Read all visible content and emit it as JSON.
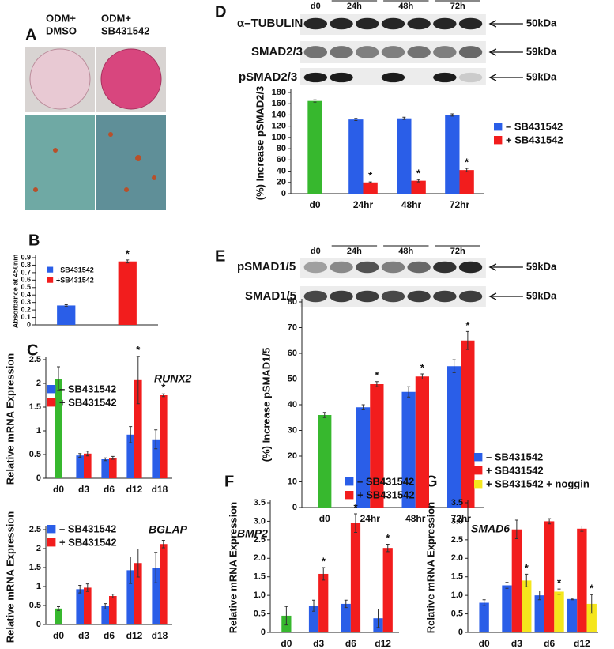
{
  "panel_labels": [
    "A",
    "B",
    "C",
    "D",
    "E",
    "F",
    "G"
  ],
  "panel_a": {
    "labels": [
      [
        "ODM+",
        "DMSO"
      ],
      [
        "ODM+",
        "SB431542"
      ]
    ]
  },
  "blots": [
    {
      "lanes": [
        "d0",
        "24h",
        "48h",
        "72h"
      ],
      "rows": [
        {
          "label": "α–TUBULIN",
          "size": "50kDa"
        },
        {
          "label": "SMAD2/3",
          "size": "59kDa"
        },
        {
          "label": "pSMAD2/3",
          "size": "59kDa"
        }
      ]
    },
    {
      "lanes": [
        "d0",
        "24h",
        "48h",
        "72h"
      ],
      "rows": [
        {
          "label": "pSMAD1/5",
          "size": "59kDa"
        },
        {
          "label": "SMAD1/5",
          "size": "59kDa"
        }
      ]
    }
  ],
  "chart_data": [
    {
      "type": "bar",
      "ylabel": "Absorbance at 450nm",
      "categories": [
        null,
        null
      ],
      "marker": "*",
      "series": [
        {
          "name": "−SB431542",
          "color": "#2a5ee8",
          "values": [
            0.26,
            null
          ],
          "errors": [
            0.01,
            null
          ],
          "significant": [
            false,
            false
          ]
        },
        {
          "name": "+SB431542",
          "color": "#f21d1d",
          "values": [
            null,
            0.85
          ],
          "errors": [
            null,
            0.02
          ],
          "significant": [
            false,
            true
          ]
        }
      ],
      "ylim": [
        0,
        0.9
      ],
      "yticks": [
        0,
        0.1,
        0.2,
        0.3,
        0.4,
        0.5,
        0.6,
        0.7,
        0.8,
        0.9
      ]
    },
    {
      "type": "bar",
      "title": "RUNX2",
      "ylabel": "Relative mRNA Expression",
      "categories": [
        "d0",
        "d3",
        "d6",
        "d12",
        "d18"
      ],
      "marker": "*",
      "series": [
        {
          "color": "#37b82e",
          "values": [
            2.1,
            null,
            null,
            null,
            null
          ],
          "errors": [
            0.25,
            null,
            null,
            null,
            null
          ],
          "significant": [
            false,
            false,
            false,
            false,
            false
          ]
        },
        {
          "name": "– SB431542",
          "color": "#2a5ee8",
          "values": [
            null,
            0.48,
            0.4,
            0.92,
            0.82
          ],
          "errors": [
            null,
            0.04,
            0.03,
            0.17,
            0.2
          ],
          "significant": [
            false,
            false,
            false,
            false,
            false
          ]
        },
        {
          "name": "+ SB431542",
          "color": "#f21d1d",
          "values": [
            null,
            0.52,
            0.43,
            2.07,
            1.75
          ],
          "errors": [
            null,
            0.05,
            0.03,
            0.5,
            0.03
          ],
          "significant": [
            false,
            false,
            false,
            true,
            true
          ]
        }
      ],
      "ylim": [
        0,
        2.5
      ],
      "yticks": [
        0,
        0.5,
        1,
        1.5,
        2,
        2.5
      ]
    },
    {
      "type": "bar",
      "title": "BGLAP",
      "ylabel": "Relative mRNA Expression",
      "categories": [
        "d0",
        "d3",
        "d6",
        "d12",
        "d18"
      ],
      "marker": "*",
      "series": [
        {
          "color": "#37b82e",
          "values": [
            0.42,
            null,
            null,
            null,
            null
          ],
          "errors": [
            0.05,
            null,
            null,
            null,
            null
          ],
          "significant": [
            false,
            false,
            false,
            false,
            false
          ]
        },
        {
          "name": "– SB431542",
          "color": "#2a5ee8",
          "values": [
            null,
            0.93,
            0.48,
            1.43,
            1.5
          ],
          "errors": [
            null,
            0.1,
            0.07,
            0.35,
            0.4
          ],
          "significant": [
            false,
            false,
            false,
            false,
            false
          ]
        },
        {
          "name": "+ SB431542",
          "color": "#f21d1d",
          "values": [
            null,
            0.97,
            0.75,
            1.62,
            2.12
          ],
          "errors": [
            null,
            0.1,
            0.05,
            0.37,
            0.1
          ],
          "significant": [
            false,
            false,
            false,
            false,
            false
          ]
        }
      ],
      "ylim": [
        0,
        2.5
      ],
      "yticks": [
        0,
        0.5,
        1,
        1.5,
        2,
        2.5
      ]
    },
    {
      "type": "bar",
      "ylabel": "(%) Increase pSMAD2/3",
      "categories": [
        "d0",
        "24hr",
        "48hr",
        "72hr"
      ],
      "marker": "*",
      "series": [
        {
          "color": "#37b82e",
          "values": [
            165,
            null,
            null,
            null
          ],
          "errors": [
            2,
            null,
            null,
            null
          ],
          "significant": [
            false,
            false,
            false,
            false
          ]
        },
        {
          "name": "– SB431542",
          "color": "#2a5ee8",
          "values": [
            null,
            132,
            134,
            140
          ],
          "errors": [
            null,
            2,
            2,
            2
          ],
          "significant": [
            false,
            false,
            false,
            false
          ]
        },
        {
          "name": "+ SB431542",
          "color": "#f21d1d",
          "values": [
            null,
            20,
            23,
            42
          ],
          "errors": [
            null,
            1,
            2,
            3
          ],
          "significant": [
            false,
            true,
            true,
            true
          ]
        }
      ],
      "ylim": [
        0,
        180
      ],
      "yticks": [
        0,
        20,
        40,
        60,
        80,
        100,
        120,
        140,
        160,
        180
      ]
    },
    {
      "type": "bar",
      "ylabel": "(%) Increase pSMAD1/5",
      "categories": [
        "d0",
        "24hr",
        "48hr",
        "72hr"
      ],
      "marker": "*",
      "series": [
        {
          "color": "#37b82e",
          "values": [
            36,
            null,
            null,
            null
          ],
          "errors": [
            1,
            null,
            null,
            null
          ],
          "significant": [
            false,
            false,
            false,
            false
          ]
        },
        {
          "color": "#2a5ee8",
          "values": [
            null,
            39,
            45,
            55
          ],
          "errors": [
            null,
            1,
            2,
            2.5
          ],
          "significant": [
            false,
            false,
            false,
            false
          ]
        },
        {
          "color": "#f21d1d",
          "values": [
            null,
            48,
            51,
            65
          ],
          "errors": [
            null,
            1,
            1,
            3.5
          ],
          "significant": [
            false,
            true,
            true,
            true
          ]
        }
      ],
      "ylim": [
        0,
        80
      ],
      "yticks": [
        0,
        10,
        20,
        30,
        40,
        50,
        60,
        70,
        80
      ]
    },
    {
      "type": "bar",
      "title": "BMP2",
      "ylabel": "Relative mRNA Expression",
      "categories": [
        "d0",
        "d3",
        "d6",
        "d12"
      ],
      "marker": "*",
      "series": [
        {
          "color": "#37b82e",
          "values": [
            0.45,
            null,
            null,
            null
          ],
          "errors": [
            0.25,
            null,
            null,
            null
          ],
          "significant": [
            false,
            false,
            false,
            false
          ]
        },
        {
          "name": "– SB431542",
          "color": "#2a5ee8",
          "values": [
            null,
            0.72,
            0.77,
            0.38
          ],
          "errors": [
            null,
            0.15,
            0.1,
            0.25
          ],
          "significant": [
            false,
            false,
            false,
            false
          ]
        },
        {
          "name": "+ SB431542",
          "color": "#f21d1d",
          "values": [
            null,
            1.58,
            2.95,
            2.28
          ],
          "errors": [
            null,
            0.17,
            0.25,
            0.1
          ],
          "significant": [
            false,
            true,
            true,
            true
          ]
        }
      ],
      "ylim": [
        0,
        3.5
      ],
      "yticks": [
        0,
        0.5,
        {
          "value": 1,
          "label": "1.0"
        },
        1.5,
        {
          "value": 2,
          "label": "2.0"
        },
        2.5,
        {
          "value": 3,
          "label": "3.0"
        },
        3.5
      ]
    },
    {
      "type": "bar",
      "title": "SMAD6",
      "ylabel": "Relative mRNA Expression",
      "categories": [
        "d0",
        "d3",
        "d6",
        "d12"
      ],
      "marker": "*",
      "series": [
        {
          "color": "#2a5ee8",
          "values": [
            0.8,
            null,
            null,
            null
          ],
          "errors": [
            0.08,
            null,
            null,
            null
          ],
          "significant": [
            false,
            false,
            false,
            false
          ]
        },
        {
          "name": "– SB431542",
          "color": "#2a5ee8",
          "values": [
            null,
            1.27,
            1.0,
            0.9
          ],
          "errors": [
            null,
            0.08,
            0.12,
            0.02
          ],
          "significant": [
            false,
            false,
            false,
            false
          ]
        },
        {
          "name": "+ SB431542",
          "color": "#f21d1d",
          "values": [
            null,
            2.78,
            3.0,
            2.8
          ],
          "errors": [
            null,
            0.25,
            0.07,
            0.07
          ],
          "significant": [
            false,
            false,
            false,
            false
          ]
        },
        {
          "name": "+ SB431542 + noggin",
          "color": "#f5e61c",
          "values": [
            null,
            1.4,
            1.1,
            0.77
          ],
          "errors": [
            null,
            0.17,
            0.07,
            0.25
          ],
          "significant": [
            false,
            true,
            true,
            true
          ]
        }
      ],
      "ylim": [
        0,
        3.5
      ],
      "yticks": [
        0,
        0.5,
        {
          "value": 1,
          "label": "1.0"
        },
        1.5,
        {
          "value": 2,
          "label": "2.0"
        },
        2.5,
        {
          "value": 3,
          "label": "3.0"
        },
        3.5
      ]
    }
  ]
}
